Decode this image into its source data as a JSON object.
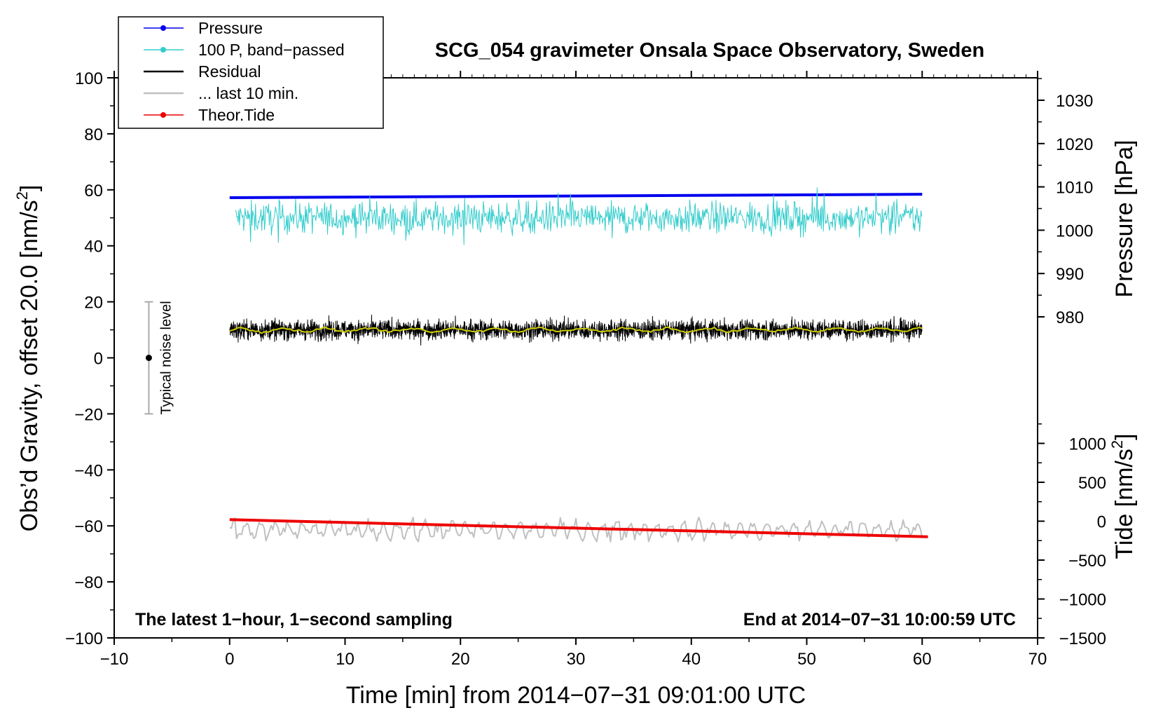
{
  "chart_data": {
    "type": "line",
    "title": "SCG_054 gravimeter Onsala Space Observatory, Sweden",
    "xlabel": "Time [min] from 2014−07−31 09:01:00 UTC",
    "ylabel": "Obs’d Gravity, offset 20.0 [nm/s",
    "ylabel_sup": "2",
    "ylabel_tail": "]",
    "y2label": "Pressure [hPa]",
    "y3label": "Tide [nm/s",
    "y3label_sup": "2",
    "y3label_tail": "]",
    "xlim": [
      -10,
      70
    ],
    "ylim": [
      -100,
      100
    ],
    "pressure_lim": [
      970,
      1035
    ],
    "tide_lim": [
      -1500,
      1500
    ],
    "xticks": [
      -10,
      0,
      10,
      20,
      30,
      40,
      50,
      60,
      70
    ],
    "xtick_labels": [
      "−10",
      "0",
      "10",
      "20",
      "30",
      "40",
      "50",
      "60",
      "70"
    ],
    "yticks": [
      -100,
      -80,
      -60,
      -40,
      -20,
      0,
      20,
      40,
      60,
      80,
      100
    ],
    "ytick_labels": [
      "−100",
      "−80",
      "−60",
      "−40",
      "−20",
      "0",
      "20",
      "40",
      "60",
      "80",
      "100"
    ],
    "pressure_ticks": [
      980,
      990,
      1000,
      1010,
      1020,
      1030
    ],
    "pressure_tick_labels": [
      "980",
      "990",
      "1000",
      "1010",
      "1020",
      "1030"
    ],
    "tide_ticks": [
      -1500,
      -1000,
      -500,
      0,
      500,
      1000
    ],
    "tide_tick_labels": [
      "−1500",
      "−1000",
      "−500",
      "0",
      "500",
      "1000"
    ],
    "legend": {
      "placement": "top-left",
      "entries": [
        {
          "label": "Pressure",
          "color": "#0000ee",
          "marker": true
        },
        {
          "label": "100 P, band−passed",
          "color": "#33cccc",
          "marker": true
        },
        {
          "label": "Residual",
          "color": "#000000",
          "marker": false
        },
        {
          "label": "... last 10 min.",
          "color": "#c0c0c0",
          "marker": false
        },
        {
          "label": "Theor.Tide",
          "color": "#ee0000",
          "marker": true
        }
      ]
    },
    "series": [
      {
        "name": "Pressure",
        "axis": "pressure",
        "color": "#0000ee",
        "x": [
          0,
          60
        ],
        "values": [
          1007.5,
          1008.3
        ]
      },
      {
        "name": "100 P, band−passed",
        "axis": "gravity",
        "color": "#33cccc",
        "center": 50,
        "noise": 4
      },
      {
        "name": "Residual",
        "axis": "gravity",
        "color": "#000000",
        "center": 10,
        "noise": 2.5
      },
      {
        "name": "Residual smoothed",
        "axis": "gravity",
        "color": "#cccc00",
        "center": 10,
        "noise": 0.6
      },
      {
        "name": "... last 10 min.",
        "axis": "gravity",
        "color": "#c0c0c0",
        "center": -61.5,
        "noise": 2.5
      },
      {
        "name": "Theor.Tide",
        "axis": "tide",
        "color": "#ee0000",
        "x": [
          0,
          60.5
        ],
        "values": [
          20,
          -200
        ]
      }
    ],
    "noise_bar": {
      "x": -7,
      "center": 0,
      "low": -20,
      "high": 20,
      "label": "Typical noise level"
    },
    "annotations": {
      "left": "The latest 1−hour, 1−second sampling",
      "right": "End at 2014−07−31 10:00:59 UTC"
    }
  }
}
